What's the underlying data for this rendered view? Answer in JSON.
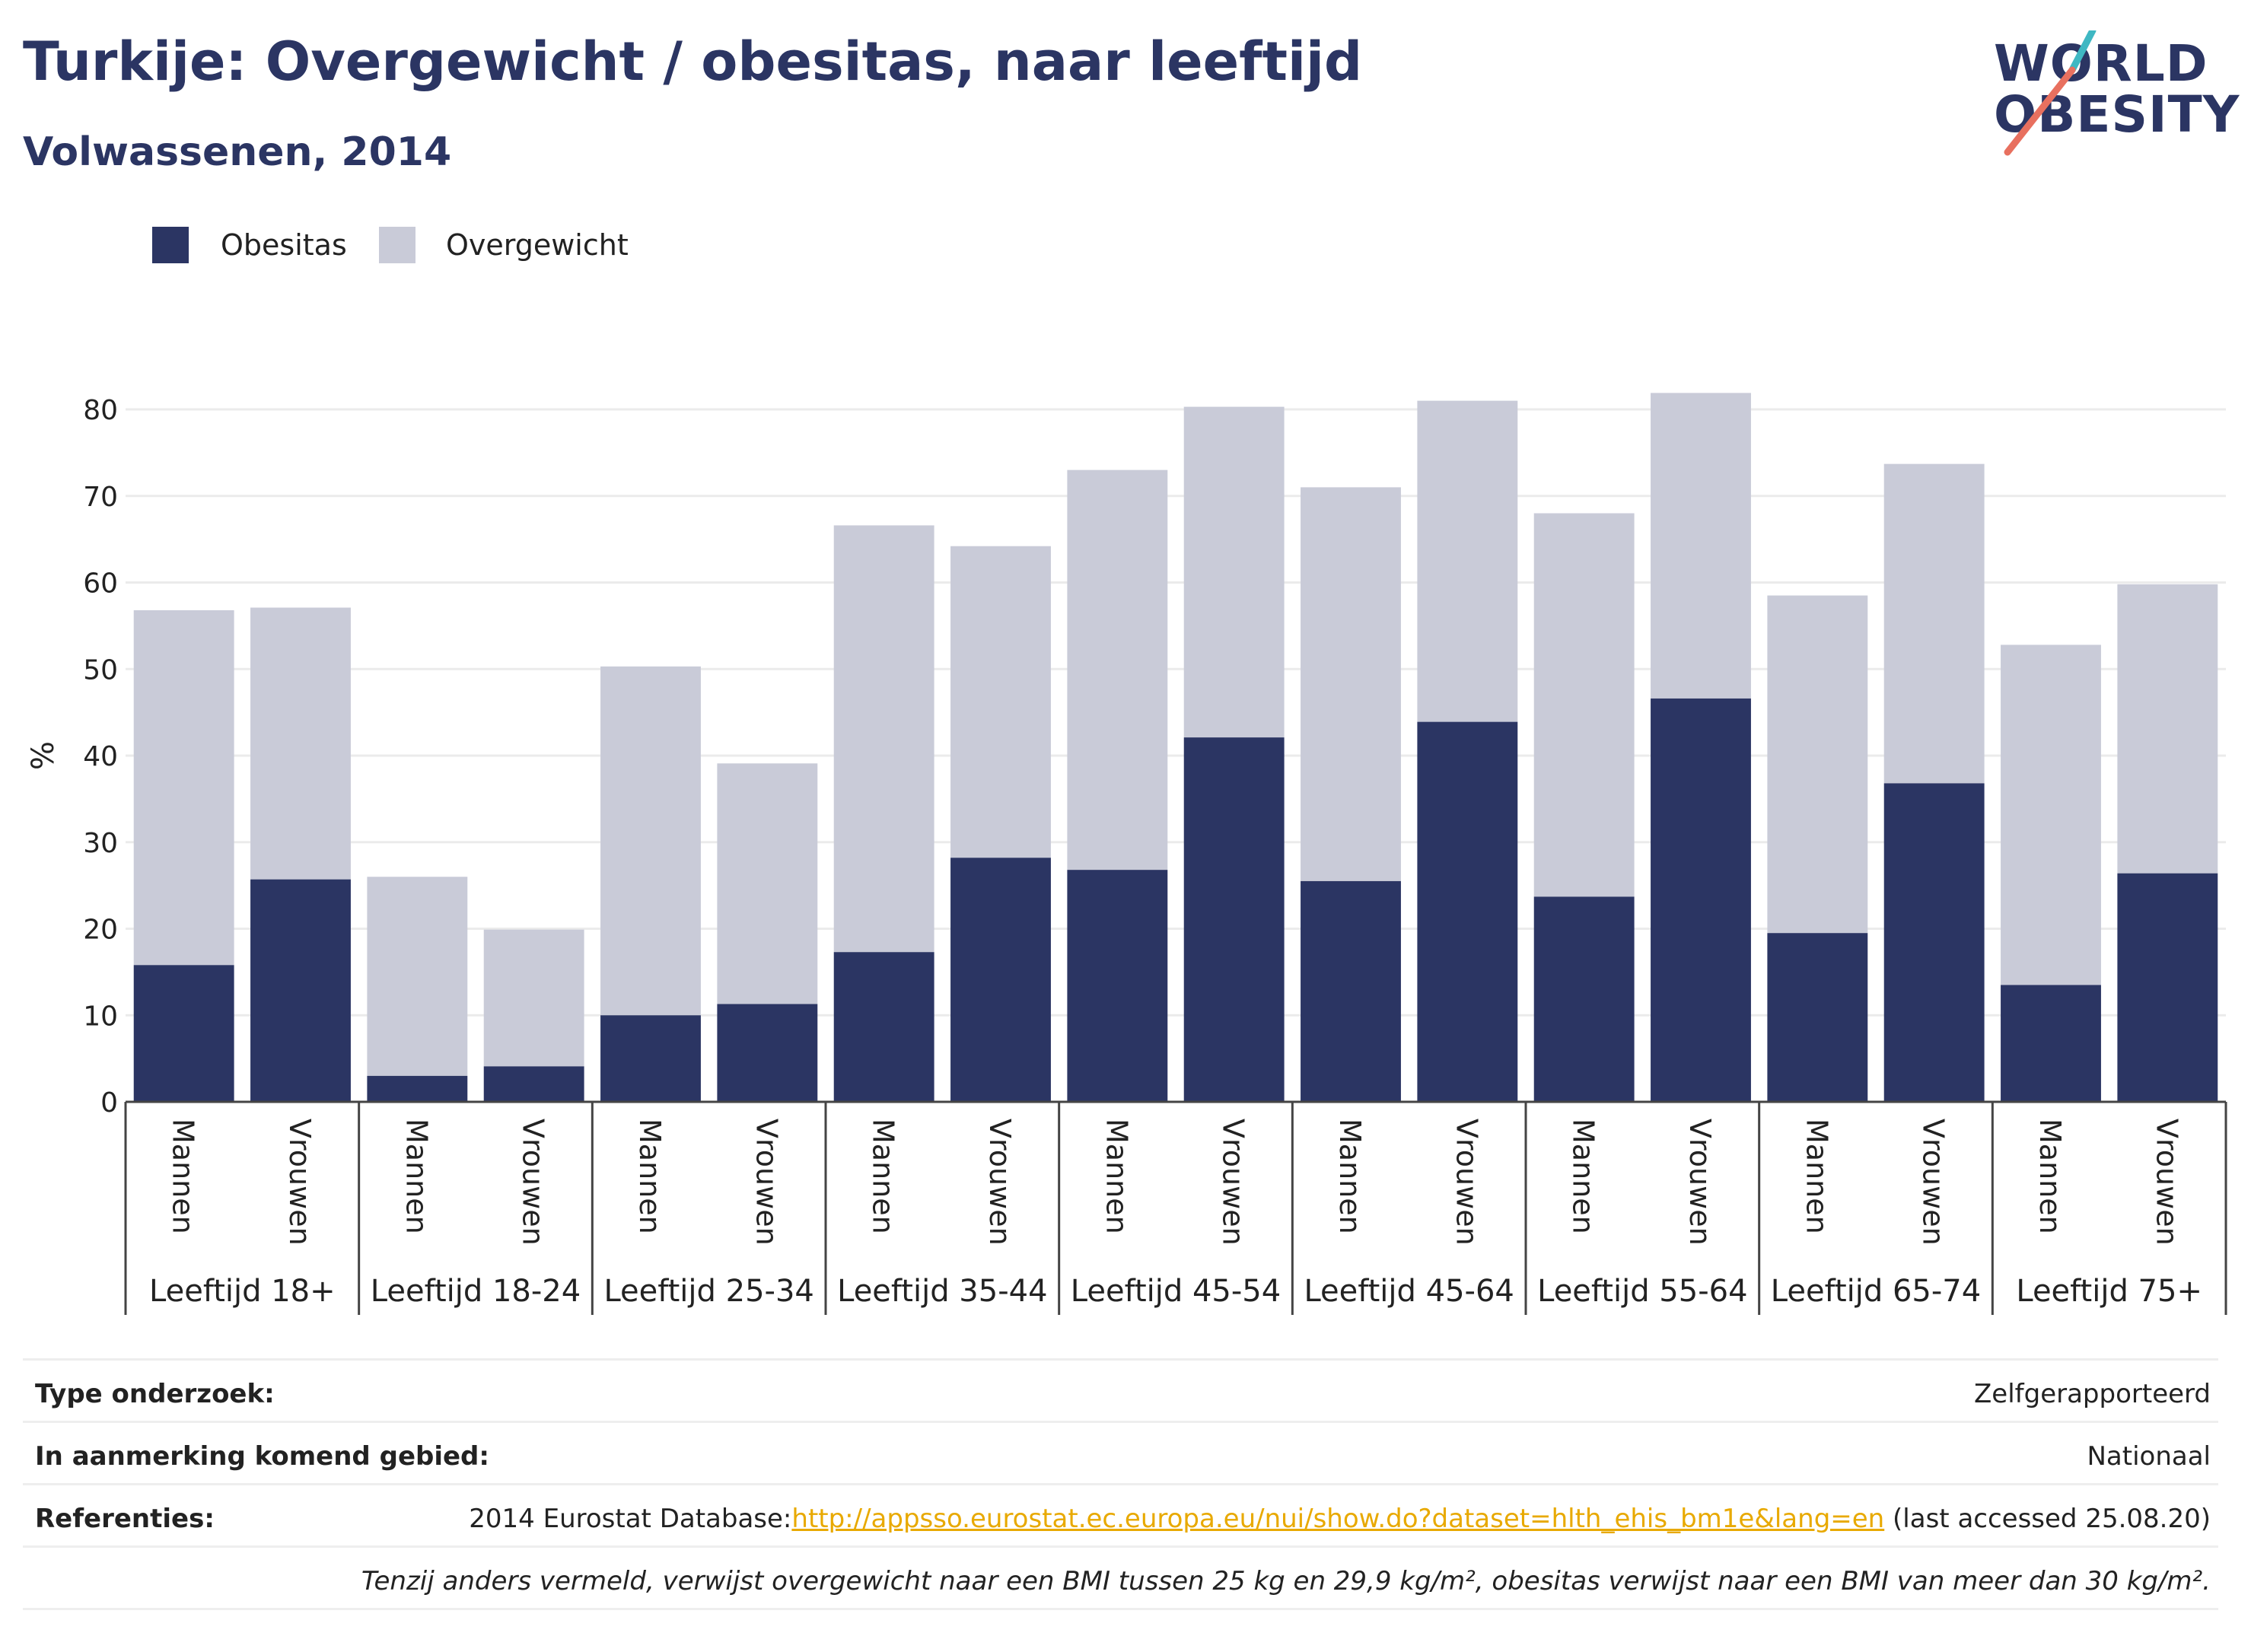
{
  "title": "Turkije: Overgewicht / obesitas, naar leeftijd",
  "subtitle": "Volwassenen, 2014",
  "logo": {
    "line1": "WORLD",
    "line2": "OBESITY"
  },
  "colors": {
    "obesitas": "#2b3563",
    "overgewicht": "#c9cbd8",
    "title": "#2b3563",
    "link": "#e8a900"
  },
  "legend": [
    {
      "label": "Obesitas",
      "color": "#2b3563"
    },
    {
      "label": "Overgewicht",
      "color": "#c9cbd8"
    }
  ],
  "chart_data": {
    "type": "bar",
    "stacked": true,
    "ylabel": "%",
    "ylim": [
      0,
      80
    ],
    "yticks": [
      0,
      10,
      20,
      30,
      40,
      50,
      60,
      70,
      80
    ],
    "grid": true,
    "groups": [
      {
        "label": "Leeftijd 18+",
        "bars": [
          {
            "sex": "Mannen",
            "obesitas": 15.8,
            "total": 56.8
          },
          {
            "sex": "Vrouwen",
            "obesitas": 25.7,
            "total": 57.1
          }
        ]
      },
      {
        "label": "Leeftijd 18-24",
        "bars": [
          {
            "sex": "Mannen",
            "obesitas": 3.0,
            "total": 26.0
          },
          {
            "sex": "Vrouwen",
            "obesitas": 4.1,
            "total": 19.9
          }
        ]
      },
      {
        "label": "Leeftijd 25-34",
        "bars": [
          {
            "sex": "Mannen",
            "obesitas": 10.0,
            "total": 50.3
          },
          {
            "sex": "Vrouwen",
            "obesitas": 11.3,
            "total": 39.1
          }
        ]
      },
      {
        "label": "Leeftijd 35-44",
        "bars": [
          {
            "sex": "Mannen",
            "obesitas": 17.3,
            "total": 66.6
          },
          {
            "sex": "Vrouwen",
            "obesitas": 28.2,
            "total": 64.2
          }
        ]
      },
      {
        "label": "Leeftijd 45-54",
        "bars": [
          {
            "sex": "Mannen",
            "obesitas": 26.8,
            "total": 73.0
          },
          {
            "sex": "Vrouwen",
            "obesitas": 42.1,
            "total": 80.3
          }
        ]
      },
      {
        "label": "Leeftijd 45-64",
        "bars": [
          {
            "sex": "Mannen",
            "obesitas": 25.5,
            "total": 71.0
          },
          {
            "sex": "Vrouwen",
            "obesitas": 43.9,
            "total": 81.0
          }
        ]
      },
      {
        "label": "Leeftijd 55-64",
        "bars": [
          {
            "sex": "Mannen",
            "obesitas": 23.7,
            "total": 68.0
          },
          {
            "sex": "Vrouwen",
            "obesitas": 46.6,
            "total": 81.9
          }
        ]
      },
      {
        "label": "Leeftijd 65-74",
        "bars": [
          {
            "sex": "Mannen",
            "obesitas": 19.5,
            "total": 58.5
          },
          {
            "sex": "Vrouwen",
            "obesitas": 36.8,
            "total": 73.7
          }
        ]
      },
      {
        "label": "Leeftijd 75+",
        "bars": [
          {
            "sex": "Mannen",
            "obesitas": 13.5,
            "total": 52.8
          },
          {
            "sex": "Vrouwen",
            "obesitas": 26.4,
            "total": 59.8
          }
        ]
      }
    ]
  },
  "info": {
    "type_key": "Type onderzoek:",
    "type_value": "Zelfgerapporteerd",
    "area_key": "In aanmerking komend gebied:",
    "area_value": "Nationaal",
    "ref_key": "Referenties:",
    "ref_prefix": "2014 Eurostat Database:",
    "ref_link": "http://appsso.eurostat.ec.europa.eu/nui/show.do?dataset=hlth_ehis_bm1e&lang=en",
    "ref_suffix": " (last accessed 25.08.20)",
    "note": "Tenzij anders vermeld, verwijst overgewicht naar een BMI tussen 25 kg en 29,9 kg/m², obesitas verwijst naar een BMI van meer dan 30 kg/m²."
  }
}
